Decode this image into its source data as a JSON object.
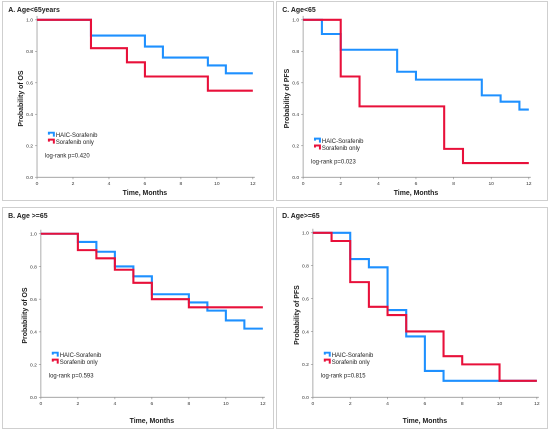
{
  "colors": {
    "haic": "#1e90ff",
    "sorafenib": "#e8103a"
  },
  "chart_data": [
    {
      "type": "line",
      "title": "A. Age<65years",
      "xlabel": "Time, Months",
      "ylabel": "Probability of OS",
      "xlim": [
        0,
        12
      ],
      "ylim": [
        0,
        1.0
      ],
      "xticks": [
        "0",
        "2",
        "4",
        "6",
        "8",
        "10",
        "12"
      ],
      "yticks": [
        "0.0",
        "0.2",
        "0.4",
        "0.6",
        "0.8",
        "1.0"
      ],
      "series": [
        {
          "name": "HAIC-Sorafenib",
          "color": "#1e90ff",
          "x": [
            0,
            3,
            6,
            7,
            9.5,
            10.5,
            12
          ],
          "y": [
            1.0,
            0.9,
            0.83,
            0.76,
            0.71,
            0.66,
            0.66
          ]
        },
        {
          "name": "Sorafenib only",
          "color": "#e8103a",
          "x": [
            0,
            3,
            5,
            6,
            9.5,
            12
          ],
          "y": [
            1.0,
            0.82,
            0.73,
            0.64,
            0.55,
            0.55
          ]
        }
      ],
      "legend_position": "bottom-left",
      "annotation": "log-rank p=0.420"
    },
    {
      "type": "line",
      "title": "C. Age<65",
      "xlabel": "Time, Months",
      "ylabel": "Probability of PFS",
      "xlim": [
        0,
        12
      ],
      "ylim": [
        0,
        1.0
      ],
      "xticks": [
        "0",
        "2",
        "4",
        "6",
        "8",
        "10",
        "12"
      ],
      "yticks": [
        "0.0",
        "0.2",
        "0.4",
        "0.6",
        "0.8",
        "1.0"
      ],
      "series": [
        {
          "name": "HAIC-Sorafenib",
          "color": "#1e90ff",
          "x": [
            0,
            1,
            2,
            5,
            6,
            9.5,
            10.5,
            11.5,
            12
          ],
          "y": [
            1.0,
            0.91,
            0.81,
            0.67,
            0.62,
            0.52,
            0.48,
            0.43,
            0.43
          ]
        },
        {
          "name": "Sorafenib only",
          "color": "#e8103a",
          "x": [
            0,
            2,
            3,
            7.5,
            8.5,
            12
          ],
          "y": [
            1.0,
            0.64,
            0.45,
            0.18,
            0.09,
            0.09
          ]
        }
      ],
      "legend_position": "bottom-left",
      "annotation": "log-rank p=0.023"
    },
    {
      "type": "line",
      "title": "B. Age >=65",
      "xlabel": "Time, Months",
      "ylabel": "Probability of OS",
      "xlim": [
        0,
        12
      ],
      "ylim": [
        0,
        1.0
      ],
      "xticks": [
        "0",
        "2",
        "4",
        "6",
        "8",
        "10",
        "12"
      ],
      "yticks": [
        "0.0",
        "0.2",
        "0.4",
        "0.6",
        "0.8",
        "1.0"
      ],
      "series": [
        {
          "name": "HAIC-Sorafenib",
          "color": "#1e90ff",
          "x": [
            0,
            2,
            3,
            4,
            5,
            6,
            8,
            9,
            10,
            11,
            12
          ],
          "y": [
            1.0,
            0.95,
            0.89,
            0.8,
            0.74,
            0.63,
            0.58,
            0.53,
            0.47,
            0.42,
            0.42
          ]
        },
        {
          "name": "Sorafenib only",
          "color": "#e8103a",
          "x": [
            0,
            2,
            3,
            4,
            5,
            6,
            8,
            12
          ],
          "y": [
            1.0,
            0.9,
            0.85,
            0.78,
            0.7,
            0.6,
            0.55,
            0.55
          ]
        }
      ],
      "legend_position": "bottom-left",
      "annotation": "log-rank p=0.593"
    },
    {
      "type": "line",
      "title": "D. Age>=65",
      "xlabel": "Time, Months",
      "ylabel": "Probability of PFS",
      "xlim": [
        0,
        12
      ],
      "ylim": [
        0,
        1.0
      ],
      "xticks": [
        "0",
        "2",
        "4",
        "6",
        "8",
        "10",
        "12"
      ],
      "yticks": [
        "0.0",
        "0.2",
        "0.4",
        "0.6",
        "0.8",
        "1.0"
      ],
      "series": [
        {
          "name": "HAIC-Sorafenib",
          "color": "#1e90ff",
          "x": [
            0,
            2,
            3,
            4,
            5,
            6,
            7,
            12
          ],
          "y": [
            1.0,
            0.84,
            0.79,
            0.53,
            0.37,
            0.16,
            0.1,
            0.1
          ]
        },
        {
          "name": "Sorafenib only",
          "color": "#e8103a",
          "x": [
            0,
            1,
            2,
            3,
            4,
            5,
            7,
            8,
            10,
            12
          ],
          "y": [
            1.0,
            0.95,
            0.7,
            0.55,
            0.5,
            0.4,
            0.25,
            0.2,
            0.1,
            0.1
          ]
        }
      ],
      "legend_position": "bottom-left",
      "annotation": "log-rank p=0.815"
    }
  ]
}
